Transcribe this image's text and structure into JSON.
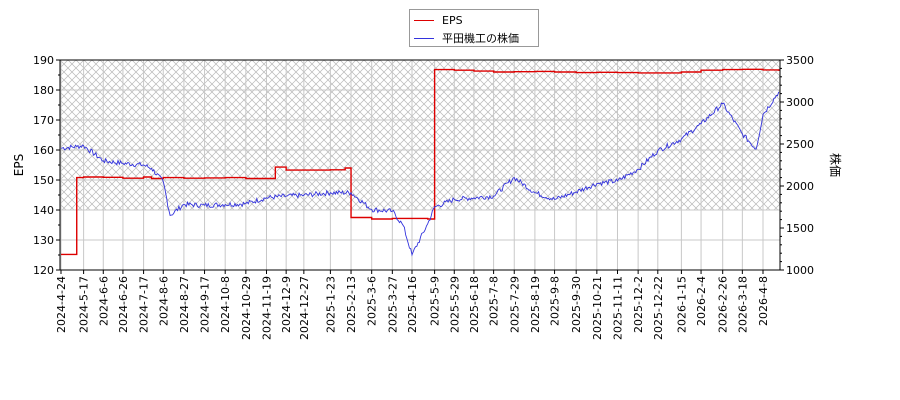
{
  "legend": [
    {
      "label": "EPS",
      "color": "#dd0000"
    },
    {
      "label": "平田機工の株価",
      "color": "#3333dd"
    }
  ],
  "axes": {
    "left_title": "EPS",
    "right_title": "株価",
    "left_ticks": [
      "120",
      "130",
      "140",
      "150",
      "160",
      "170",
      "180",
      "190"
    ],
    "right_ticks": [
      "1000",
      "1500",
      "2000",
      "2500",
      "3000",
      "3500"
    ],
    "x_ticks": [
      "2024-4-24",
      "2024-5-17",
      "2024-6-6",
      "2024-6-26",
      "2024-7-17",
      "2024-8-6",
      "2024-8-27",
      "2024-9-17",
      "2024-10-8",
      "2024-10-29",
      "2024-11-19",
      "2024-12-9",
      "2024-12-27",
      "2025-1-23",
      "2025-2-13",
      "2025-3-6",
      "2025-3-27",
      "2025-4-16",
      "2025-5-9",
      "2025-5-29",
      "2025-6-18",
      "2025-7-8",
      "2025-7-29",
      "2025-8-19",
      "2025-9-8",
      "2025-9-30",
      "2025-10-21",
      "2025-11-11",
      "2025-12-2",
      "2025-12-22",
      "2026-1-15",
      "2026-2-4",
      "2026-2-26",
      "2026-3-18",
      "2026-4-8"
    ]
  },
  "chart_data": {
    "type": "line",
    "title": "",
    "xlabel": "",
    "ylabel": "EPS",
    "ylabel_right": "株価",
    "ylim": [
      120,
      190
    ],
    "ylim_right": [
      1000,
      3500
    ],
    "grid": true,
    "legend_position": "top-center",
    "shaded_band": {
      "axis": "left",
      "from": 140,
      "to": 190,
      "pattern": "crosshatch"
    },
    "categories": [
      "2024-4-24",
      "2024-5-17",
      "2024-6-6",
      "2024-6-26",
      "2024-7-17",
      "2024-8-6",
      "2024-8-27",
      "2024-9-17",
      "2024-10-8",
      "2024-10-29",
      "2024-11-19",
      "2024-12-9",
      "2024-12-27",
      "2025-1-23",
      "2025-2-13",
      "2025-3-6",
      "2025-3-27",
      "2025-4-16",
      "2025-5-9",
      "2025-5-29",
      "2025-6-18",
      "2025-7-8",
      "2025-7-29",
      "2025-8-19",
      "2025-9-8",
      "2025-9-30",
      "2025-10-21",
      "2025-11-11",
      "2025-12-2",
      "2025-12-22",
      "2026-1-15",
      "2026-2-4",
      "2026-2-26",
      "2026-3-18",
      "2026-4-8"
    ],
    "series": [
      {
        "name": "EPS",
        "axis": "left",
        "color": "#dd0000",
        "x": [
          "2024-4-24",
          "2024-5-9",
          "2024-5-10",
          "2024-5-17",
          "2024-6-6",
          "2024-6-26",
          "2024-7-17",
          "2024-7-25",
          "2024-8-6",
          "2024-8-27",
          "2024-9-17",
          "2024-10-8",
          "2024-10-29",
          "2024-11-19",
          "2024-11-28",
          "2024-12-9",
          "2024-12-27",
          "2025-1-23",
          "2025-2-7",
          "2025-2-13",
          "2025-3-6",
          "2025-3-27",
          "2025-4-16",
          "2025-5-2",
          "2025-5-9",
          "2025-5-29",
          "2025-6-18",
          "2025-7-8",
          "2025-7-29",
          "2025-8-19",
          "2025-9-8",
          "2025-9-30",
          "2025-10-21",
          "2025-11-11",
          "2025-12-2",
          "2025-12-22",
          "2026-1-15",
          "2026-2-4",
          "2026-2-26",
          "2026-3-18",
          "2026-4-8",
          "2026-4-24"
        ],
        "values": [
          125.2,
          125.2,
          150.8,
          151.0,
          150.9,
          150.6,
          151.0,
          150.5,
          150.8,
          150.6,
          150.7,
          150.8,
          150.5,
          150.5,
          154.3,
          153.3,
          153.3,
          153.4,
          154.0,
          137.5,
          137.0,
          137.2,
          137.2,
          137.0,
          186.8,
          186.6,
          186.3,
          186.0,
          186.1,
          186.2,
          186.0,
          185.8,
          185.9,
          185.8,
          185.7,
          185.7,
          186.0,
          186.6,
          186.8,
          186.9,
          186.7,
          186.6
        ]
      },
      {
        "name": "平田機工の株価",
        "axis": "right",
        "color": "#3333dd",
        "x": [
          "2024-4-24",
          "2024-5-10",
          "2024-5-17",
          "2024-6-6",
          "2024-6-26",
          "2024-7-17",
          "2024-7-25",
          "2024-8-6",
          "2024-8-13",
          "2024-8-27",
          "2024-9-17",
          "2024-10-8",
          "2024-10-29",
          "2024-11-19",
          "2024-12-9",
          "2024-12-27",
          "2025-1-23",
          "2025-2-13",
          "2025-3-6",
          "2025-3-27",
          "2025-4-7",
          "2025-4-16",
          "2025-5-2",
          "2025-5-9",
          "2025-5-29",
          "2025-6-18",
          "2025-7-8",
          "2025-7-29",
          "2025-8-19",
          "2025-9-8",
          "2025-9-30",
          "2025-10-21",
          "2025-11-11",
          "2025-12-2",
          "2025-12-22",
          "2026-1-15",
          "2026-2-4",
          "2026-2-26",
          "2026-3-18",
          "2026-4-1",
          "2026-4-8",
          "2026-4-24"
        ],
        "values": [
          2450,
          2470,
          2480,
          2300,
          2270,
          2250,
          2210,
          2050,
          1650,
          1780,
          1770,
          1780,
          1790,
          1860,
          1880,
          1890,
          1920,
          1920,
          1720,
          1700,
          1530,
          1180,
          1550,
          1750,
          1840,
          1860,
          1880,
          2100,
          1920,
          1840,
          1930,
          2030,
          2060,
          2200,
          2420,
          2560,
          2740,
          2980,
          2620,
          2440,
          2850,
          3120
        ]
      }
    ]
  }
}
